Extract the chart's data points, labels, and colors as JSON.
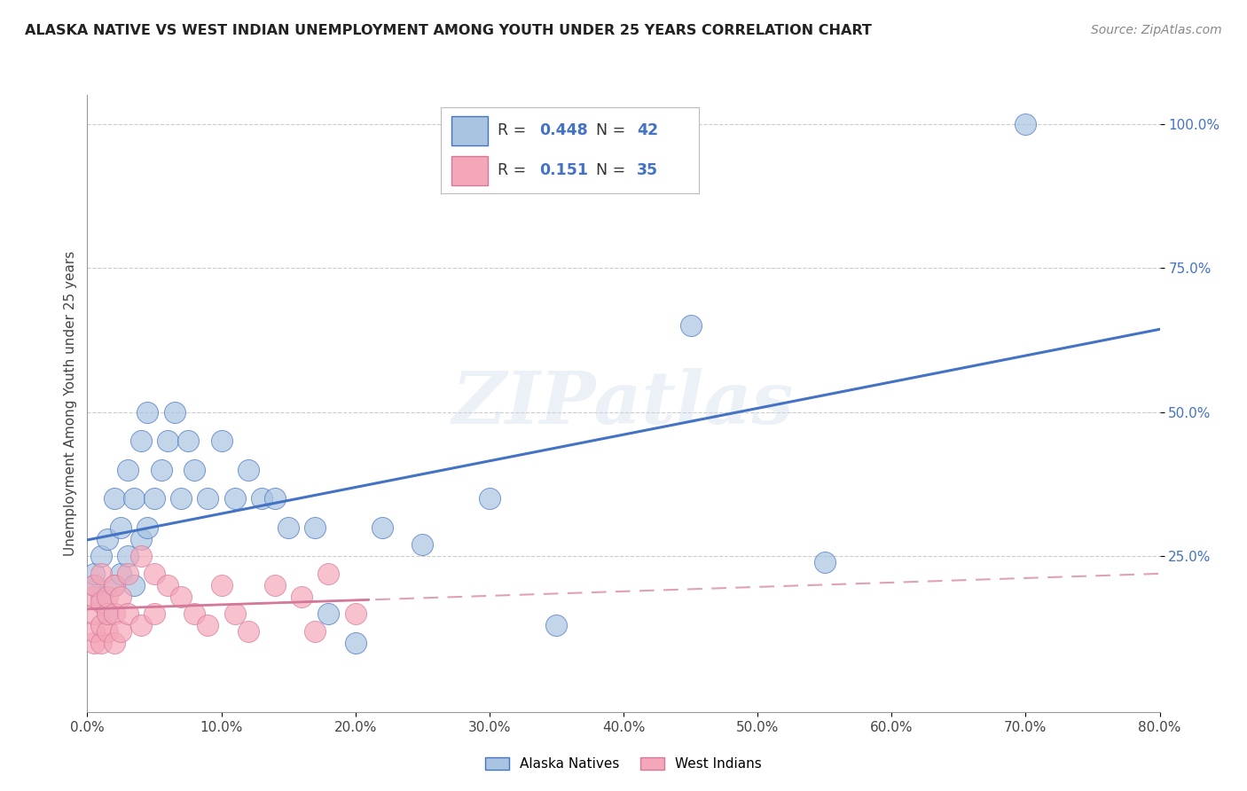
{
  "title": "ALASKA NATIVE VS WEST INDIAN UNEMPLOYMENT AMONG YOUTH UNDER 25 YEARS CORRELATION CHART",
  "source": "Source: ZipAtlas.com",
  "ylabel": "Unemployment Among Youth under 25 years",
  "alaska_R": "0.448",
  "alaska_N": "42",
  "west_R": "0.151",
  "west_N": "35",
  "alaska_color": "#a8c4e0",
  "west_color": "#f4a7b9",
  "alaska_line_color": "#4472c4",
  "west_line_color": "#d4789a",
  "bg_color": "#ffffff",
  "watermark": "ZIPatlas",
  "alaska_x": [
    0.005,
    0.005,
    0.01,
    0.01,
    0.015,
    0.015,
    0.02,
    0.02,
    0.025,
    0.025,
    0.03,
    0.03,
    0.035,
    0.035,
    0.04,
    0.04,
    0.045,
    0.045,
    0.05,
    0.055,
    0.06,
    0.065,
    0.07,
    0.075,
    0.08,
    0.09,
    0.1,
    0.11,
    0.12,
    0.13,
    0.14,
    0.15,
    0.17,
    0.18,
    0.2,
    0.22,
    0.25,
    0.3,
    0.35,
    0.45,
    0.55,
    0.7
  ],
  "alaska_y": [
    0.2,
    0.22,
    0.18,
    0.25,
    0.15,
    0.28,
    0.2,
    0.35,
    0.22,
    0.3,
    0.25,
    0.4,
    0.2,
    0.35,
    0.28,
    0.45,
    0.3,
    0.5,
    0.35,
    0.4,
    0.45,
    0.5,
    0.35,
    0.45,
    0.4,
    0.35,
    0.45,
    0.35,
    0.4,
    0.35,
    0.35,
    0.3,
    0.3,
    0.15,
    0.1,
    0.3,
    0.27,
    0.35,
    0.13,
    0.65,
    0.24,
    1.0
  ],
  "west_x": [
    0.005,
    0.005,
    0.005,
    0.005,
    0.005,
    0.01,
    0.01,
    0.01,
    0.01,
    0.015,
    0.015,
    0.015,
    0.02,
    0.02,
    0.02,
    0.025,
    0.025,
    0.03,
    0.03,
    0.04,
    0.04,
    0.05,
    0.05,
    0.06,
    0.07,
    0.08,
    0.09,
    0.1,
    0.11,
    0.12,
    0.14,
    0.16,
    0.17,
    0.18,
    0.2
  ],
  "west_y": [
    0.1,
    0.12,
    0.15,
    0.18,
    0.2,
    0.1,
    0.13,
    0.17,
    0.22,
    0.12,
    0.15,
    0.18,
    0.1,
    0.15,
    0.2,
    0.12,
    0.18,
    0.15,
    0.22,
    0.13,
    0.25,
    0.15,
    0.22,
    0.2,
    0.18,
    0.15,
    0.13,
    0.2,
    0.15,
    0.12,
    0.2,
    0.18,
    0.12,
    0.22,
    0.15
  ],
  "xlim": [
    0.0,
    0.8
  ],
  "ylim": [
    -0.02,
    1.05
  ],
  "grid_color": "#cccccc"
}
